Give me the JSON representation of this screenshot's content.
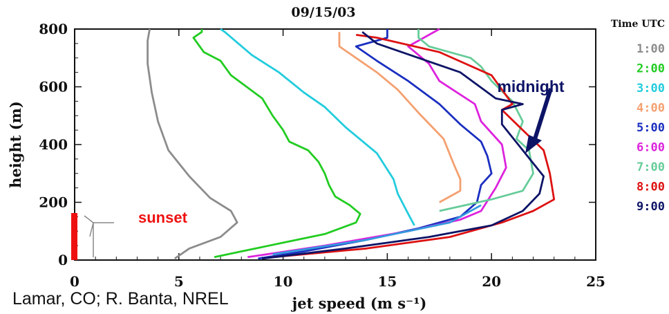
{
  "chart_data": {
    "type": "line",
    "title": "09/15/03",
    "xlabel": "jet speed (m s⁻¹)",
    "ylabel": "height (m)",
    "xlim": [
      0,
      25
    ],
    "ylim": [
      0,
      800
    ],
    "xticks": [
      "0",
      "5",
      "10",
      "15",
      "20",
      "25"
    ],
    "yticks": [
      "0",
      "200",
      "400",
      "600",
      "800"
    ],
    "legend_title": "Time UTC",
    "legend_position": "right",
    "series": [
      {
        "name": "1:00",
        "color": "#8c8c8c",
        "points": [
          [
            4.8,
            5
          ],
          [
            5.5,
            40
          ],
          [
            7,
            80
          ],
          [
            7.8,
            130
          ],
          [
            7.5,
            170
          ],
          [
            6.5,
            215
          ],
          [
            5.5,
            290
          ],
          [
            4.5,
            380
          ],
          [
            4,
            480
          ],
          [
            3.7,
            580
          ],
          [
            3.5,
            680
          ],
          [
            3.5,
            760
          ],
          [
            3.6,
            800
          ]
        ]
      },
      {
        "name": "2:00",
        "color": "#22cc22",
        "points": [
          [
            6.7,
            10
          ],
          [
            8,
            30
          ],
          [
            10,
            60
          ],
          [
            12,
            90
          ],
          [
            13.5,
            130
          ],
          [
            13.7,
            160
          ],
          [
            13.2,
            190
          ],
          [
            12.5,
            220
          ],
          [
            12.2,
            260
          ],
          [
            12,
            300
          ],
          [
            11.7,
            340
          ],
          [
            11.2,
            380
          ],
          [
            10.3,
            410
          ],
          [
            10,
            450
          ],
          [
            9.5,
            500
          ],
          [
            9,
            560
          ],
          [
            7.5,
            640
          ],
          [
            7,
            690
          ],
          [
            6.2,
            720
          ],
          [
            5.7,
            770
          ],
          [
            6.1,
            790
          ],
          [
            6.1,
            800
          ]
        ]
      },
      {
        "name": "3:00",
        "color": "#22ccdd",
        "points": [
          [
            16.3,
            120
          ],
          [
            16,
            160
          ],
          [
            15.5,
            230
          ],
          [
            15.3,
            280
          ],
          [
            14.5,
            370
          ],
          [
            13,
            460
          ],
          [
            12,
            530
          ],
          [
            11,
            580
          ],
          [
            9.8,
            650
          ],
          [
            8.5,
            710
          ],
          [
            7.2,
            790
          ],
          [
            7,
            800
          ]
        ]
      },
      {
        "name": "4:00",
        "color": "#f4a070",
        "points": [
          [
            17.5,
            200
          ],
          [
            18,
            220
          ],
          [
            18.5,
            240
          ],
          [
            18.5,
            280
          ],
          [
            18.2,
            330
          ],
          [
            17.7,
            420
          ],
          [
            16.5,
            510
          ],
          [
            15.5,
            590
          ],
          [
            14.5,
            650
          ],
          [
            13.5,
            700
          ],
          [
            12.7,
            740
          ],
          [
            12.7,
            790
          ]
        ]
      },
      {
        "name": "5:00",
        "color": "#1a2fc0",
        "points": [
          [
            8.8,
            5
          ],
          [
            11,
            30
          ],
          [
            14,
            70
          ],
          [
            16.5,
            110
          ],
          [
            18.5,
            150
          ],
          [
            19.3,
            200
          ],
          [
            19.5,
            260
          ],
          [
            20,
            300
          ],
          [
            19.8,
            360
          ],
          [
            19.5,
            410
          ],
          [
            18.5,
            470
          ],
          [
            17.5,
            540
          ],
          [
            16,
            620
          ],
          [
            14.5,
            690
          ],
          [
            13.5,
            740
          ],
          [
            15,
            770
          ],
          [
            15,
            800
          ]
        ]
      },
      {
        "name": "6:00",
        "color": "#dd22dd",
        "points": [
          [
            8.3,
            10
          ],
          [
            12,
            50
          ],
          [
            16,
            100
          ],
          [
            18.5,
            140
          ],
          [
            19.5,
            170
          ],
          [
            20.2,
            250
          ],
          [
            20.7,
            320
          ],
          [
            20.5,
            400
          ],
          [
            19.5,
            480
          ],
          [
            19.2,
            540
          ],
          [
            17.5,
            620
          ],
          [
            17,
            680
          ],
          [
            16,
            740
          ],
          [
            17,
            780
          ],
          [
            17.5,
            800
          ]
        ]
      },
      {
        "name": "7:00",
        "color": "#66cc99",
        "points": [
          [
            17.5,
            170
          ],
          [
            20,
            210
          ],
          [
            21.5,
            240
          ],
          [
            22,
            300
          ],
          [
            21.8,
            380
          ],
          [
            21.2,
            420
          ],
          [
            21.5,
            480
          ],
          [
            21,
            550
          ],
          [
            20,
            620
          ],
          [
            19.5,
            670
          ],
          [
            19,
            700
          ],
          [
            17,
            740
          ],
          [
            16.5,
            770
          ],
          [
            16.5,
            800
          ]
        ]
      },
      {
        "name": "8:00",
        "color": "#dd1111",
        "points": [
          [
            9.5,
            10
          ],
          [
            14,
            40
          ],
          [
            18,
            80
          ],
          [
            20.5,
            130
          ],
          [
            22,
            170
          ],
          [
            23,
            210
          ],
          [
            22.8,
            300
          ],
          [
            22.5,
            380
          ],
          [
            21.5,
            450
          ],
          [
            20.5,
            520
          ],
          [
            21,
            540
          ],
          [
            20,
            640
          ],
          [
            17.5,
            720
          ],
          [
            14.5,
            770
          ],
          [
            13.5,
            780
          ]
        ]
      },
      {
        "name": "9:00",
        "color": "#0d1466",
        "points": [
          [
            9,
            5
          ],
          [
            13,
            40
          ],
          [
            17,
            80
          ],
          [
            20,
            120
          ],
          [
            21.5,
            170
          ],
          [
            22.3,
            230
          ],
          [
            22.5,
            290
          ],
          [
            21.5,
            380
          ],
          [
            20.5,
            470
          ],
          [
            20.5,
            520
          ],
          [
            21.5,
            540
          ],
          [
            20.2,
            560
          ],
          [
            18.5,
            650
          ],
          [
            14.5,
            750
          ],
          [
            13.8,
            790
          ]
        ]
      },
      {
        "name": "",
        "color": "#3399dd",
        "points": [
          [
            9.5,
            20
          ],
          [
            14,
            70
          ],
          [
            18,
            130
          ],
          [
            19.5,
            190
          ]
        ]
      }
    ],
    "annotations": [
      {
        "text": "midnight",
        "color": "#0d1466"
      },
      {
        "text": "sunset",
        "color": "#ee1111"
      }
    ]
  },
  "caption": "Lamar, CO; R. Banta, NREL"
}
